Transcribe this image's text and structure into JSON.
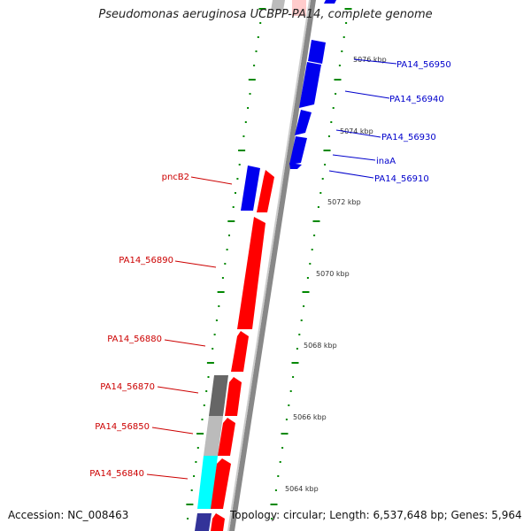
{
  "title": "Pseudomonas aeruginosa UCBPP-PA14, complete genome",
  "footer": {
    "accession": "Accession: NC_008463",
    "topology": "Topology: circular; Length: 6,537,648 bp; Genes: 5,964"
  },
  "colors": {
    "forward_gene": "#ff0000",
    "reverse_gene": "#0000ee",
    "gc_dark": "#666666",
    "gc_light": "#bbbbbb",
    "gc_cyan": "#00ffff",
    "backbone": "#888888",
    "tick": "#008800"
  },
  "scale_labels": [
    "5076 kbp",
    "5074 kbp",
    "5072 kbp",
    "5070 kbp",
    "5068 kbp",
    "5066 kbp",
    "5064 kbp"
  ],
  "forward_genes": [
    "pncB2",
    "PA14_56890",
    "PA14_56880",
    "PA14_56870",
    "PA14_56850",
    "PA14_56840"
  ],
  "reverse_genes": [
    "PA14_56950",
    "PA14_56940",
    "PA14_56930",
    "inaA",
    "PA14_56910"
  ]
}
